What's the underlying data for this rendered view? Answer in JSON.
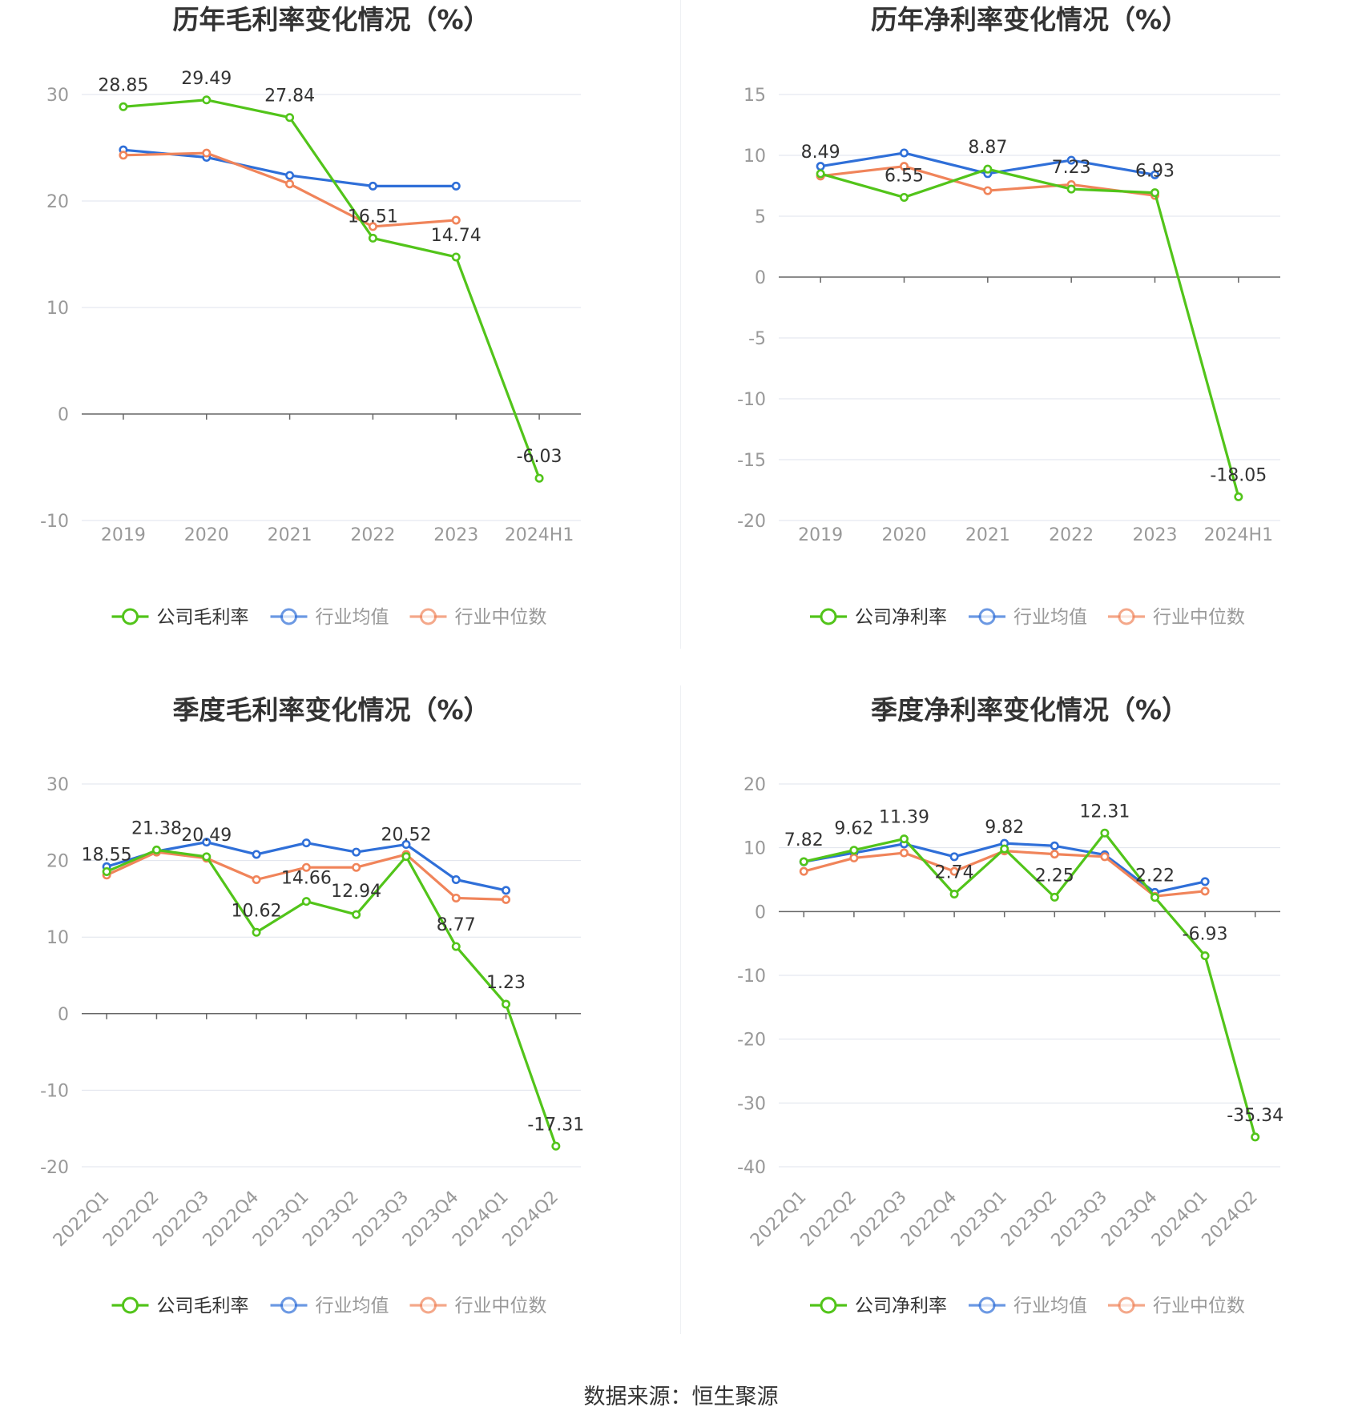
{
  "source_text": "数据来源：恒生聚源",
  "colors": {
    "company": "#52c41a",
    "industry_avg": "#2f6fd8",
    "industry_median": "#f0845a",
    "grid": "#dfe3ec",
    "axis": "#666666",
    "tick_text": "#999999",
    "title_text": "#333333"
  },
  "chart_data": [
    {
      "type": "line",
      "title": "历年毛利率变化情况（%）",
      "categories": [
        "2019",
        "2020",
        "2021",
        "2022",
        "2023",
        "2024H1"
      ],
      "ylim": [
        -10,
        30
      ],
      "yticks": [
        -10,
        0,
        10,
        20,
        30
      ],
      "grid": true,
      "legend": "bottom",
      "series": [
        {
          "name": "公司毛利率",
          "role": "company",
          "values": [
            28.85,
            29.49,
            27.84,
            16.51,
            14.74,
            -6.03
          ],
          "labels": [
            "28.85",
            "29.49",
            "27.84",
            "16.51",
            "14.74",
            "-6.03"
          ]
        },
        {
          "name": "行业均值",
          "role": "industry_avg",
          "values": [
            24.8,
            24.1,
            22.4,
            21.4,
            21.4,
            null
          ]
        },
        {
          "name": "行业中位数",
          "role": "industry_median",
          "values": [
            24.3,
            24.5,
            21.6,
            17.6,
            18.2,
            null
          ]
        }
      ]
    },
    {
      "type": "line",
      "title": "历年净利率变化情况（%）",
      "categories": [
        "2019",
        "2020",
        "2021",
        "2022",
        "2023",
        "2024H1"
      ],
      "ylim": [
        -20,
        15
      ],
      "yticks": [
        -20,
        -15,
        -10,
        -5,
        0,
        5,
        10,
        15
      ],
      "grid": true,
      "legend": "bottom",
      "series": [
        {
          "name": "公司净利率",
          "role": "company",
          "values": [
            8.49,
            6.55,
            8.87,
            7.23,
            6.93,
            -18.05
          ],
          "labels": [
            "8.49",
            "6.55",
            "8.87",
            "7.23",
            "6.93",
            "-18.05"
          ]
        },
        {
          "name": "行业均值",
          "role": "industry_avg",
          "values": [
            9.1,
            10.2,
            8.5,
            9.6,
            8.4,
            null
          ]
        },
        {
          "name": "行业中位数",
          "role": "industry_median",
          "values": [
            8.3,
            9.1,
            7.1,
            7.6,
            6.7,
            null
          ]
        }
      ]
    },
    {
      "type": "line",
      "title": "季度毛利率变化情况（%）",
      "categories": [
        "2022Q1",
        "2022Q2",
        "2022Q3",
        "2022Q4",
        "2023Q1",
        "2023Q2",
        "2023Q3",
        "2023Q4",
        "2024Q1",
        "2024Q2"
      ],
      "ylim": [
        -20,
        30
      ],
      "yticks": [
        -20,
        -10,
        0,
        10,
        20,
        30
      ],
      "grid": true,
      "legend": "bottom",
      "series": [
        {
          "name": "公司毛利率",
          "role": "company",
          "values": [
            18.55,
            21.38,
            20.49,
            10.62,
            14.66,
            12.94,
            20.52,
            8.77,
            1.23,
            -17.31
          ],
          "labels": [
            "18.55",
            "21.38",
            "20.49",
            "10.62",
            "14.66",
            "12.94",
            "20.52",
            "8.77",
            "1.23",
            "-17.31"
          ]
        },
        {
          "name": "行业均值",
          "role": "industry_avg",
          "values": [
            19.2,
            21.2,
            22.4,
            20.8,
            22.3,
            21.1,
            22.1,
            17.5,
            16.1,
            null
          ]
        },
        {
          "name": "行业中位数",
          "role": "industry_median",
          "values": [
            18.1,
            21.1,
            20.3,
            17.5,
            19.1,
            19.1,
            20.8,
            15.1,
            14.9,
            null
          ]
        }
      ]
    },
    {
      "type": "line",
      "title": "季度净利率变化情况（%）",
      "categories": [
        "2022Q1",
        "2022Q2",
        "2022Q3",
        "2022Q4",
        "2023Q1",
        "2023Q2",
        "2023Q3",
        "2023Q4",
        "2024Q1",
        "2024Q2"
      ],
      "ylim": [
        -40,
        20
      ],
      "yticks": [
        -40,
        -30,
        -20,
        -10,
        0,
        10,
        20
      ],
      "grid": true,
      "legend": "bottom",
      "series": [
        {
          "name": "公司净利率",
          "role": "company",
          "values": [
            7.82,
            9.62,
            11.39,
            2.74,
            9.82,
            2.25,
            12.31,
            2.22,
            -6.93,
            -35.34
          ],
          "labels": [
            "7.82",
            "9.62",
            "11.39",
            "2.74",
            "9.82",
            "2.25",
            "12.31",
            "2.22",
            "-6.93",
            "-35.34"
          ]
        },
        {
          "name": "行业均值",
          "role": "industry_avg",
          "values": [
            7.8,
            9.2,
            10.6,
            8.6,
            10.7,
            10.3,
            8.9,
            3.0,
            4.7,
            null
          ]
        },
        {
          "name": "行业中位数",
          "role": "industry_median",
          "values": [
            6.3,
            8.4,
            9.2,
            6.3,
            9.5,
            9.0,
            8.6,
            2.4,
            3.2,
            null
          ]
        }
      ]
    }
  ]
}
